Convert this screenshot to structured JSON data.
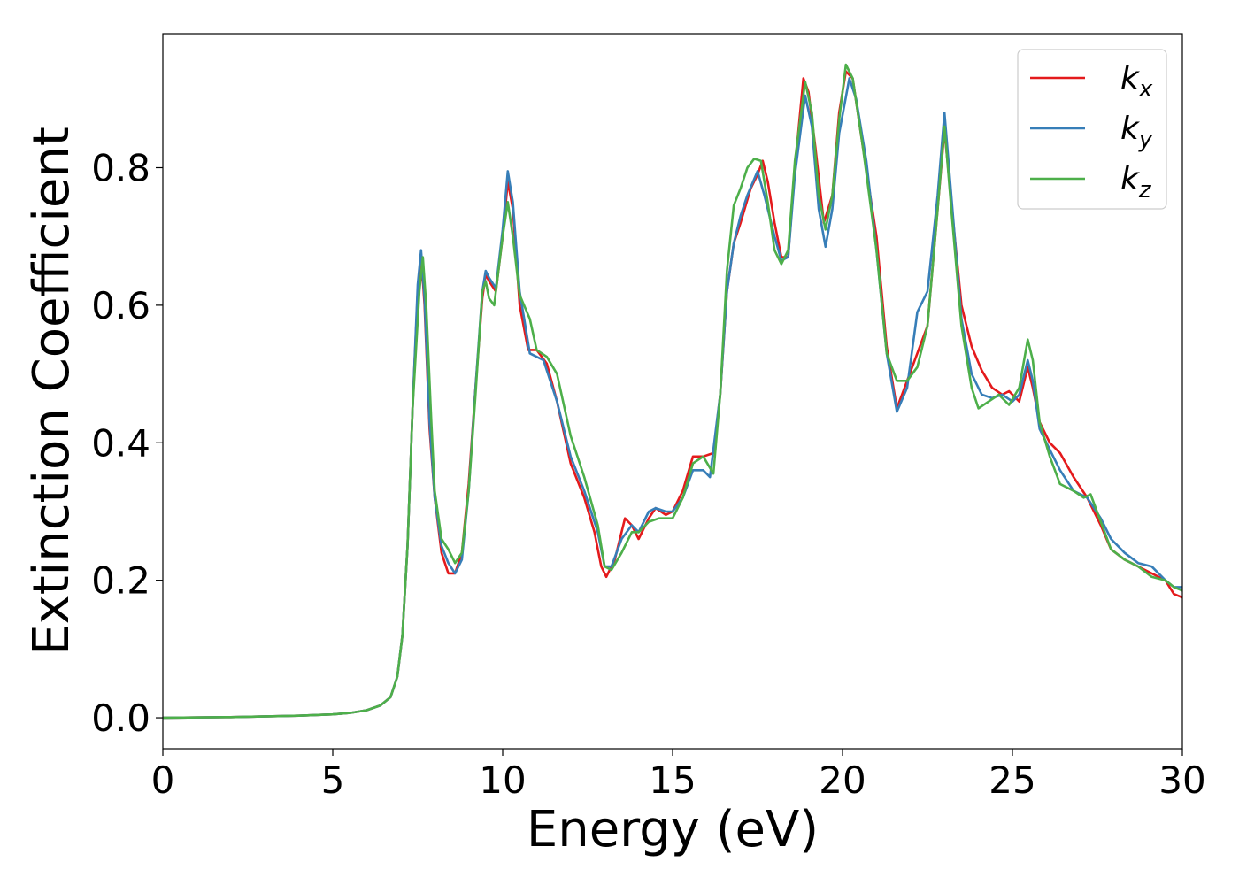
{
  "chart_data": {
    "type": "line",
    "title": "",
    "xlabel": "Energy (eV)",
    "ylabel": "Extinction Coefficient",
    "xlim": [
      0,
      30
    ],
    "ylim": [
      -0.045,
      0.995
    ],
    "xticks": [
      0,
      5,
      10,
      15,
      20,
      25,
      30
    ],
    "xtick_labels": [
      "0",
      "5",
      "10",
      "15",
      "20",
      "25",
      "30"
    ],
    "yticks": [
      0.0,
      0.2,
      0.4,
      0.6,
      0.8
    ],
    "ytick_labels": [
      "0.0",
      "0.2",
      "0.4",
      "0.6",
      "0.8"
    ],
    "grid": false,
    "legend_position": "top-right",
    "series": [
      {
        "name": "k_x",
        "legend_base": "k",
        "legend_sub": "x",
        "color": "#e41a1c",
        "points": [
          [
            0,
            0.0
          ],
          [
            2,
            0.001
          ],
          [
            4,
            0.003
          ],
          [
            5,
            0.005
          ],
          [
            5.5,
            0.007
          ],
          [
            6,
            0.011
          ],
          [
            6.4,
            0.018
          ],
          [
            6.7,
            0.03
          ],
          [
            6.9,
            0.06
          ],
          [
            7.05,
            0.12
          ],
          [
            7.2,
            0.25
          ],
          [
            7.35,
            0.45
          ],
          [
            7.5,
            0.62
          ],
          [
            7.6,
            0.675
          ],
          [
            7.7,
            0.6
          ],
          [
            7.85,
            0.42
          ],
          [
            8.0,
            0.32
          ],
          [
            8.2,
            0.24
          ],
          [
            8.4,
            0.21
          ],
          [
            8.6,
            0.21
          ],
          [
            8.8,
            0.24
          ],
          [
            9.0,
            0.34
          ],
          [
            9.2,
            0.48
          ],
          [
            9.4,
            0.61
          ],
          [
            9.5,
            0.645
          ],
          [
            9.6,
            0.635
          ],
          [
            9.8,
            0.62
          ],
          [
            10.0,
            0.7
          ],
          [
            10.15,
            0.78
          ],
          [
            10.3,
            0.74
          ],
          [
            10.5,
            0.6
          ],
          [
            10.75,
            0.535
          ],
          [
            11.0,
            0.535
          ],
          [
            11.3,
            0.515
          ],
          [
            11.6,
            0.46
          ],
          [
            12.0,
            0.37
          ],
          [
            12.4,
            0.32
          ],
          [
            12.7,
            0.27
          ],
          [
            12.9,
            0.22
          ],
          [
            13.05,
            0.205
          ],
          [
            13.3,
            0.23
          ],
          [
            13.6,
            0.29
          ],
          [
            13.8,
            0.28
          ],
          [
            14.0,
            0.26
          ],
          [
            14.3,
            0.29
          ],
          [
            14.5,
            0.305
          ],
          [
            14.8,
            0.295
          ],
          [
            15.0,
            0.3
          ],
          [
            15.3,
            0.33
          ],
          [
            15.6,
            0.38
          ],
          [
            15.9,
            0.38
          ],
          [
            16.2,
            0.385
          ],
          [
            16.4,
            0.47
          ],
          [
            16.6,
            0.62
          ],
          [
            16.8,
            0.69
          ],
          [
            17.0,
            0.72
          ],
          [
            17.3,
            0.77
          ],
          [
            17.5,
            0.79
          ],
          [
            17.65,
            0.81
          ],
          [
            17.8,
            0.78
          ],
          [
            18.0,
            0.72
          ],
          [
            18.2,
            0.67
          ],
          [
            18.4,
            0.67
          ],
          [
            18.6,
            0.8
          ],
          [
            18.85,
            0.93
          ],
          [
            19.0,
            0.91
          ],
          [
            19.2,
            0.83
          ],
          [
            19.45,
            0.72
          ],
          [
            19.7,
            0.76
          ],
          [
            19.9,
            0.88
          ],
          [
            20.1,
            0.94
          ],
          [
            20.3,
            0.93
          ],
          [
            20.6,
            0.83
          ],
          [
            21.0,
            0.7
          ],
          [
            21.3,
            0.54
          ],
          [
            21.6,
            0.45
          ],
          [
            21.9,
            0.49
          ],
          [
            22.2,
            0.53
          ],
          [
            22.5,
            0.57
          ],
          [
            22.8,
            0.74
          ],
          [
            23.0,
            0.855
          ],
          [
            23.2,
            0.75
          ],
          [
            23.5,
            0.6
          ],
          [
            23.8,
            0.54
          ],
          [
            24.1,
            0.505
          ],
          [
            24.4,
            0.48
          ],
          [
            24.7,
            0.47
          ],
          [
            24.9,
            0.475
          ],
          [
            25.2,
            0.46
          ],
          [
            25.45,
            0.51
          ],
          [
            25.6,
            0.48
          ],
          [
            25.8,
            0.43
          ],
          [
            26.1,
            0.4
          ],
          [
            26.4,
            0.385
          ],
          [
            26.8,
            0.35
          ],
          [
            27.2,
            0.32
          ],
          [
            27.6,
            0.28
          ],
          [
            27.9,
            0.245
          ],
          [
            28.3,
            0.23
          ],
          [
            28.7,
            0.22
          ],
          [
            29.1,
            0.21
          ],
          [
            29.5,
            0.2
          ],
          [
            29.75,
            0.18
          ],
          [
            30,
            0.175
          ]
        ]
      },
      {
        "name": "k_y",
        "legend_base": "k",
        "legend_sub": "y",
        "color": "#377eb8",
        "points": [
          [
            0,
            0.0
          ],
          [
            2,
            0.001
          ],
          [
            4,
            0.003
          ],
          [
            5,
            0.005
          ],
          [
            5.5,
            0.007
          ],
          [
            6,
            0.011
          ],
          [
            6.4,
            0.018
          ],
          [
            6.7,
            0.03
          ],
          [
            6.9,
            0.06
          ],
          [
            7.05,
            0.12
          ],
          [
            7.2,
            0.25
          ],
          [
            7.35,
            0.45
          ],
          [
            7.5,
            0.63
          ],
          [
            7.6,
            0.68
          ],
          [
            7.7,
            0.61
          ],
          [
            7.85,
            0.43
          ],
          [
            8.0,
            0.32
          ],
          [
            8.2,
            0.25
          ],
          [
            8.4,
            0.225
          ],
          [
            8.6,
            0.21
          ],
          [
            8.8,
            0.23
          ],
          [
            9.0,
            0.33
          ],
          [
            9.2,
            0.48
          ],
          [
            9.4,
            0.62
          ],
          [
            9.5,
            0.65
          ],
          [
            9.6,
            0.64
          ],
          [
            9.8,
            0.625
          ],
          [
            10.0,
            0.71
          ],
          [
            10.15,
            0.795
          ],
          [
            10.3,
            0.75
          ],
          [
            10.5,
            0.62
          ],
          [
            10.8,
            0.53
          ],
          [
            11.2,
            0.52
          ],
          [
            11.6,
            0.46
          ],
          [
            12.0,
            0.38
          ],
          [
            12.4,
            0.33
          ],
          [
            12.8,
            0.27
          ],
          [
            13.0,
            0.22
          ],
          [
            13.2,
            0.22
          ],
          [
            13.5,
            0.26
          ],
          [
            13.8,
            0.28
          ],
          [
            14.0,
            0.27
          ],
          [
            14.3,
            0.3
          ],
          [
            14.5,
            0.305
          ],
          [
            14.8,
            0.3
          ],
          [
            15.0,
            0.3
          ],
          [
            15.3,
            0.32
          ],
          [
            15.6,
            0.36
          ],
          [
            15.9,
            0.36
          ],
          [
            16.1,
            0.35
          ],
          [
            16.4,
            0.47
          ],
          [
            16.6,
            0.62
          ],
          [
            16.8,
            0.69
          ],
          [
            17.0,
            0.73
          ],
          [
            17.2,
            0.76
          ],
          [
            17.5,
            0.795
          ],
          [
            17.7,
            0.76
          ],
          [
            18.0,
            0.7
          ],
          [
            18.2,
            0.665
          ],
          [
            18.4,
            0.67
          ],
          [
            18.6,
            0.79
          ],
          [
            18.9,
            0.905
          ],
          [
            19.1,
            0.86
          ],
          [
            19.3,
            0.74
          ],
          [
            19.5,
            0.685
          ],
          [
            19.7,
            0.74
          ],
          [
            19.9,
            0.85
          ],
          [
            20.2,
            0.93
          ],
          [
            20.4,
            0.9
          ],
          [
            20.7,
            0.81
          ],
          [
            21.0,
            0.68
          ],
          [
            21.3,
            0.53
          ],
          [
            21.6,
            0.445
          ],
          [
            21.9,
            0.48
          ],
          [
            22.2,
            0.59
          ],
          [
            22.5,
            0.62
          ],
          [
            22.8,
            0.76
          ],
          [
            23.0,
            0.88
          ],
          [
            23.2,
            0.76
          ],
          [
            23.5,
            0.58
          ],
          [
            23.8,
            0.5
          ],
          [
            24.1,
            0.47
          ],
          [
            24.4,
            0.465
          ],
          [
            24.7,
            0.47
          ],
          [
            25.0,
            0.46
          ],
          [
            25.2,
            0.47
          ],
          [
            25.45,
            0.52
          ],
          [
            25.6,
            0.49
          ],
          [
            25.8,
            0.42
          ],
          [
            26.1,
            0.39
          ],
          [
            26.4,
            0.36
          ],
          [
            26.8,
            0.33
          ],
          [
            27.2,
            0.32
          ],
          [
            27.6,
            0.29
          ],
          [
            27.9,
            0.26
          ],
          [
            28.3,
            0.24
          ],
          [
            28.7,
            0.225
          ],
          [
            29.1,
            0.22
          ],
          [
            29.5,
            0.2
          ],
          [
            29.75,
            0.19
          ],
          [
            30,
            0.19
          ]
        ]
      },
      {
        "name": "k_z",
        "legend_base": "k",
        "legend_sub": "z",
        "color": "#4daf4a",
        "points": [
          [
            0,
            0.0
          ],
          [
            2,
            0.001
          ],
          [
            4,
            0.003
          ],
          [
            5,
            0.005
          ],
          [
            5.5,
            0.007
          ],
          [
            6,
            0.011
          ],
          [
            6.4,
            0.018
          ],
          [
            6.7,
            0.03
          ],
          [
            6.9,
            0.06
          ],
          [
            7.05,
            0.12
          ],
          [
            7.2,
            0.25
          ],
          [
            7.35,
            0.45
          ],
          [
            7.55,
            0.62
          ],
          [
            7.65,
            0.67
          ],
          [
            7.75,
            0.6
          ],
          [
            7.9,
            0.43
          ],
          [
            8.0,
            0.33
          ],
          [
            8.2,
            0.26
          ],
          [
            8.4,
            0.245
          ],
          [
            8.6,
            0.225
          ],
          [
            8.8,
            0.24
          ],
          [
            9.0,
            0.33
          ],
          [
            9.2,
            0.47
          ],
          [
            9.4,
            0.62
          ],
          [
            9.5,
            0.635
          ],
          [
            9.6,
            0.61
          ],
          [
            9.75,
            0.6
          ],
          [
            10.0,
            0.7
          ],
          [
            10.15,
            0.75
          ],
          [
            10.3,
            0.7
          ],
          [
            10.5,
            0.615
          ],
          [
            10.8,
            0.58
          ],
          [
            11.0,
            0.535
          ],
          [
            11.3,
            0.525
          ],
          [
            11.6,
            0.5
          ],
          [
            12.0,
            0.41
          ],
          [
            12.4,
            0.35
          ],
          [
            12.8,
            0.28
          ],
          [
            13.0,
            0.22
          ],
          [
            13.2,
            0.215
          ],
          [
            13.5,
            0.24
          ],
          [
            13.8,
            0.27
          ],
          [
            14.0,
            0.27
          ],
          [
            14.3,
            0.285
          ],
          [
            14.6,
            0.29
          ],
          [
            15.0,
            0.29
          ],
          [
            15.3,
            0.32
          ],
          [
            15.6,
            0.37
          ],
          [
            15.9,
            0.38
          ],
          [
            16.2,
            0.355
          ],
          [
            16.4,
            0.47
          ],
          [
            16.6,
            0.65
          ],
          [
            16.8,
            0.745
          ],
          [
            17.0,
            0.77
          ],
          [
            17.2,
            0.8
          ],
          [
            17.4,
            0.813
          ],
          [
            17.6,
            0.81
          ],
          [
            17.8,
            0.75
          ],
          [
            18.0,
            0.68
          ],
          [
            18.2,
            0.66
          ],
          [
            18.4,
            0.68
          ],
          [
            18.6,
            0.81
          ],
          [
            18.9,
            0.925
          ],
          [
            19.1,
            0.88
          ],
          [
            19.3,
            0.76
          ],
          [
            19.5,
            0.71
          ],
          [
            19.7,
            0.76
          ],
          [
            19.9,
            0.87
          ],
          [
            20.1,
            0.95
          ],
          [
            20.3,
            0.93
          ],
          [
            20.6,
            0.83
          ],
          [
            21.0,
            0.68
          ],
          [
            21.3,
            0.53
          ],
          [
            21.6,
            0.49
          ],
          [
            21.9,
            0.49
          ],
          [
            22.2,
            0.51
          ],
          [
            22.5,
            0.57
          ],
          [
            22.8,
            0.74
          ],
          [
            23.0,
            0.86
          ],
          [
            23.2,
            0.74
          ],
          [
            23.5,
            0.57
          ],
          [
            23.8,
            0.48
          ],
          [
            24.0,
            0.45
          ],
          [
            24.3,
            0.46
          ],
          [
            24.6,
            0.47
          ],
          [
            24.9,
            0.455
          ],
          [
            25.2,
            0.48
          ],
          [
            25.45,
            0.55
          ],
          [
            25.6,
            0.52
          ],
          [
            25.8,
            0.43
          ],
          [
            26.1,
            0.38
          ],
          [
            26.4,
            0.34
          ],
          [
            26.8,
            0.33
          ],
          [
            27.1,
            0.32
          ],
          [
            27.3,
            0.325
          ],
          [
            27.6,
            0.285
          ],
          [
            27.9,
            0.245
          ],
          [
            28.3,
            0.23
          ],
          [
            28.7,
            0.22
          ],
          [
            29.1,
            0.205
          ],
          [
            29.5,
            0.2
          ],
          [
            29.75,
            0.19
          ],
          [
            30,
            0.185
          ]
        ]
      }
    ]
  }
}
